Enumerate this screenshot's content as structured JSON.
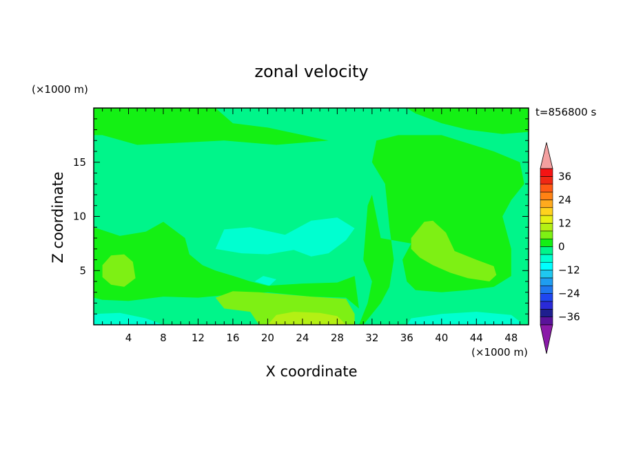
{
  "chart_data": {
    "type": "heatmap",
    "title": "zonal velocity",
    "xlabel": "X coordinate",
    "ylabel": "Z coordinate",
    "x_units": "(×1000 m)",
    "y_units": "(×1000 m)",
    "time_label": "t=856800 s",
    "xlim": [
      0,
      50
    ],
    "ylim": [
      0,
      20
    ],
    "x_ticks": [
      4,
      8,
      12,
      16,
      20,
      24,
      28,
      32,
      36,
      40,
      44,
      48
    ],
    "x_tick_labels": [
      "4",
      "8",
      "12",
      "16",
      "20",
      "24",
      "28",
      "32",
      "36",
      "40",
      "44",
      "48"
    ],
    "y_ticks": [
      5,
      10,
      15
    ],
    "y_tick_labels": [
      "5",
      "10",
      "15"
    ],
    "colorbar": {
      "levels": [
        -40,
        -36,
        -32,
        -28,
        -24,
        -20,
        -16,
        -12,
        -8,
        -4,
        0,
        4,
        8,
        12,
        16,
        20,
        24,
        28,
        32,
        36,
        40
      ],
      "colors": [
        "#5a139a",
        "#1f1f8f",
        "#2a2ad8",
        "#1f47f0",
        "#1f77ef",
        "#1f9df0",
        "#1fc8f0",
        "#00ffff",
        "#00ffd0",
        "#00f58a",
        "#14f014",
        "#7ef014",
        "#b4f014",
        "#e6f014",
        "#ffd21e",
        "#ffaa1e",
        "#ff8214",
        "#ff5a14",
        "#f02814",
        "#f51414"
      ],
      "over_color": "#f4a0a0",
      "under_color": "#8a1aa8",
      "tick_values": [
        36,
        24,
        12,
        0,
        -12,
        -24,
        -36
      ],
      "tick_labels": [
        "36",
        "24",
        "12",
        "0",
        "−12",
        "−24",
        "−36"
      ]
    },
    "background_level_value": -2,
    "regions": [
      {
        "desc": "upper-left positive band",
        "value": 2,
        "polygon": [
          [
            0,
            20
          ],
          [
            14,
            20
          ],
          [
            16,
            18.6
          ],
          [
            20,
            18.2
          ],
          [
            27,
            17
          ],
          [
            21,
            16.6
          ],
          [
            15,
            17
          ],
          [
            5,
            16.6
          ],
          [
            1,
            17.5
          ],
          [
            0,
            17.5
          ]
        ]
      },
      {
        "desc": "upper-right positive patch",
        "value": 2,
        "polygon": [
          [
            36,
            20
          ],
          [
            50,
            20
          ],
          [
            50,
            17.8
          ],
          [
            47,
            17.6
          ],
          [
            43,
            18
          ],
          [
            40,
            18.6
          ],
          [
            37,
            19.5
          ]
        ]
      },
      {
        "desc": "lower-left positive lobe",
        "value": 2,
        "polygon": [
          [
            0,
            9
          ],
          [
            3,
            8.2
          ],
          [
            6,
            8.6
          ],
          [
            8,
            9.5
          ],
          [
            10.5,
            8
          ],
          [
            11,
            6.5
          ],
          [
            12.5,
            5.5
          ],
          [
            14,
            5
          ],
          [
            16.5,
            4.4
          ],
          [
            18,
            4
          ],
          [
            20,
            3.6
          ],
          [
            24,
            3.8
          ],
          [
            28,
            3.9
          ],
          [
            30,
            4.5
          ],
          [
            30.5,
            1.5
          ],
          [
            29,
            2.5
          ],
          [
            25,
            2.6
          ],
          [
            20,
            3
          ],
          [
            16,
            2.8
          ],
          [
            12,
            2.5
          ],
          [
            8,
            2.6
          ],
          [
            4,
            2.2
          ],
          [
            1,
            2.3
          ],
          [
            0,
            2.5
          ]
        ]
      },
      {
        "desc": "central-right positive column",
        "value": 2,
        "polygon": [
          [
            31,
            0
          ],
          [
            33,
            2
          ],
          [
            34,
            3.5
          ],
          [
            34.5,
            6
          ],
          [
            34,
            9
          ],
          [
            33.5,
            13
          ],
          [
            32,
            15
          ],
          [
            32.5,
            17
          ],
          [
            35,
            17.5
          ],
          [
            40,
            17.5
          ],
          [
            46,
            16
          ],
          [
            49,
            15
          ],
          [
            49.5,
            13
          ],
          [
            48,
            11.5
          ],
          [
            47,
            10
          ],
          [
            48,
            7
          ],
          [
            48,
            4.5
          ],
          [
            46,
            3.5
          ],
          [
            43,
            3.2
          ],
          [
            40,
            3
          ],
          [
            37,
            3.2
          ],
          [
            36,
            4
          ],
          [
            35.5,
            6
          ],
          [
            36.5,
            7.5
          ],
          [
            33,
            8
          ],
          [
            32.5,
            10
          ],
          [
            32,
            12
          ],
          [
            31.5,
            11
          ],
          [
            31,
            6
          ],
          [
            32,
            4
          ],
          [
            31.5,
            2
          ],
          [
            30.5,
            0
          ]
        ]
      },
      {
        "desc": "left yellow-green lobe",
        "value": 6,
        "polygon": [
          [
            1,
            5.5
          ],
          [
            2,
            6.4
          ],
          [
            3.5,
            6.5
          ],
          [
            4.5,
            5.8
          ],
          [
            4.8,
            4.3
          ],
          [
            3.5,
            3.5
          ],
          [
            2,
            3.7
          ],
          [
            1,
            4.4
          ]
        ]
      },
      {
        "desc": "bottom yellow-green band",
        "value": 6,
        "polygon": [
          [
            14,
            2.5
          ],
          [
            16,
            3.1
          ],
          [
            19,
            3
          ],
          [
            22,
            2.8
          ],
          [
            25,
            2.6
          ],
          [
            29,
            2.4
          ],
          [
            30,
            1
          ],
          [
            30,
            0
          ],
          [
            19,
            0
          ],
          [
            18,
            1.2
          ],
          [
            15,
            1.5
          ]
        ]
      },
      {
        "desc": "right yellow-green lobe",
        "value": 6,
        "polygon": [
          [
            36.5,
            8
          ],
          [
            38,
            9.5
          ],
          [
            39,
            9.6
          ],
          [
            40.5,
            8.5
          ],
          [
            41.5,
            6.8
          ],
          [
            44,
            6
          ],
          [
            46,
            5.4
          ],
          [
            46.3,
            4.6
          ],
          [
            45.5,
            4
          ],
          [
            43,
            4.3
          ],
          [
            41,
            4.8
          ],
          [
            39,
            5.5
          ],
          [
            37.5,
            6.2
          ],
          [
            36.5,
            7
          ]
        ]
      },
      {
        "desc": "bottom yellow core",
        "value": 10,
        "polygon": [
          [
            20,
            0
          ],
          [
            21,
            0.9
          ],
          [
            23,
            1.2
          ],
          [
            26,
            1.1
          ],
          [
            28,
            0.8
          ],
          [
            29,
            0
          ]
        ]
      },
      {
        "desc": "central cyan tongue",
        "value": -6,
        "polygon": [
          [
            14,
            7
          ],
          [
            15,
            8.8
          ],
          [
            18,
            9
          ],
          [
            22,
            8.3
          ],
          [
            25,
            9.6
          ],
          [
            28,
            9.9
          ],
          [
            30,
            8.9
          ],
          [
            29,
            7.8
          ],
          [
            27,
            6.6
          ],
          [
            25,
            6.3
          ],
          [
            23,
            6.9
          ],
          [
            20,
            6.5
          ],
          [
            17,
            6.6
          ]
        ]
      },
      {
        "desc": "small cyan patch",
        "value": -6,
        "polygon": [
          [
            18.5,
            4
          ],
          [
            19.5,
            4.5
          ],
          [
            21,
            4.2
          ],
          [
            20.2,
            3.6
          ]
        ]
      },
      {
        "desc": "bottom-left cyan strip",
        "value": -6,
        "polygon": [
          [
            0,
            0
          ],
          [
            0,
            1
          ],
          [
            3,
            1.1
          ],
          [
            6,
            0.6
          ],
          [
            8,
            0
          ]
        ]
      },
      {
        "desc": "bottom-right cyan strip",
        "value": -6,
        "polygon": [
          [
            36,
            0
          ],
          [
            36.5,
            0.6
          ],
          [
            40,
            1
          ],
          [
            44,
            1.2
          ],
          [
            48,
            0.9
          ],
          [
            49,
            0.3
          ],
          [
            49,
            0
          ]
        ]
      }
    ]
  }
}
